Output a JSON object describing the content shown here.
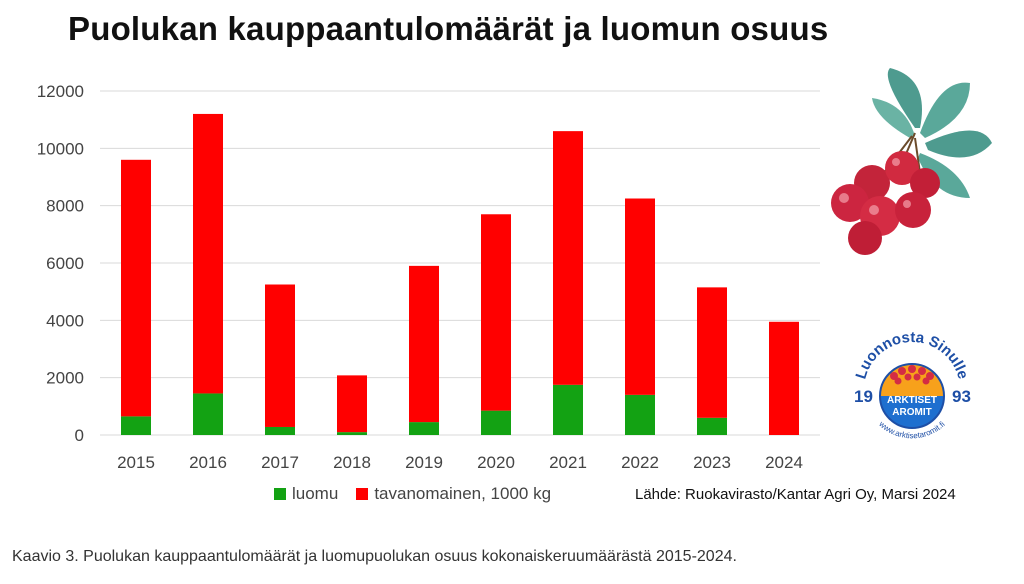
{
  "title": "Puolukan kauppaantulomäärät ja luomun osuus",
  "source": "Lähde: Ruokavirasto/Kantar Agri Oy, Marsi 2024",
  "caption": "Kaavio 3. Puolukan kauppaantulomäärät ja luomupuolukan osuus kokonaiskeruumäärästä 2015-2024.",
  "logo": {
    "arc_text": "Luonnosta Sinulle",
    "year_left": "19",
    "year_right": "93",
    "line1": "ARKTISET",
    "line2": "AROMIT",
    "url": "www.arktisetaromit.fi"
  },
  "colors": {
    "luomu": "#13a213",
    "tavanomainen": "#ff0000",
    "grid": "#d9d9d9"
  },
  "chart_data": {
    "type": "bar",
    "stacked": true,
    "title": "Puolukan kauppaantulomäärät ja luomun osuus",
    "categories": [
      "2015",
      "2016",
      "2017",
      "2018",
      "2019",
      "2020",
      "2021",
      "2022",
      "2023",
      "2024"
    ],
    "series": [
      {
        "name": "luomu",
        "values": [
          650,
          1450,
          280,
          100,
          450,
          850,
          1750,
          1400,
          600,
          0
        ]
      },
      {
        "name": "tavanomainen, 1000 kg",
        "values": [
          8950,
          9750,
          4970,
          1980,
          5450,
          6850,
          8850,
          6850,
          4550,
          3950
        ]
      }
    ],
    "ylim": [
      0,
      12000
    ],
    "yticks": [
      "0",
      "2000",
      "4000",
      "6000",
      "8000",
      "10000",
      "12000"
    ],
    "grid": true,
    "legend": "bottom"
  }
}
